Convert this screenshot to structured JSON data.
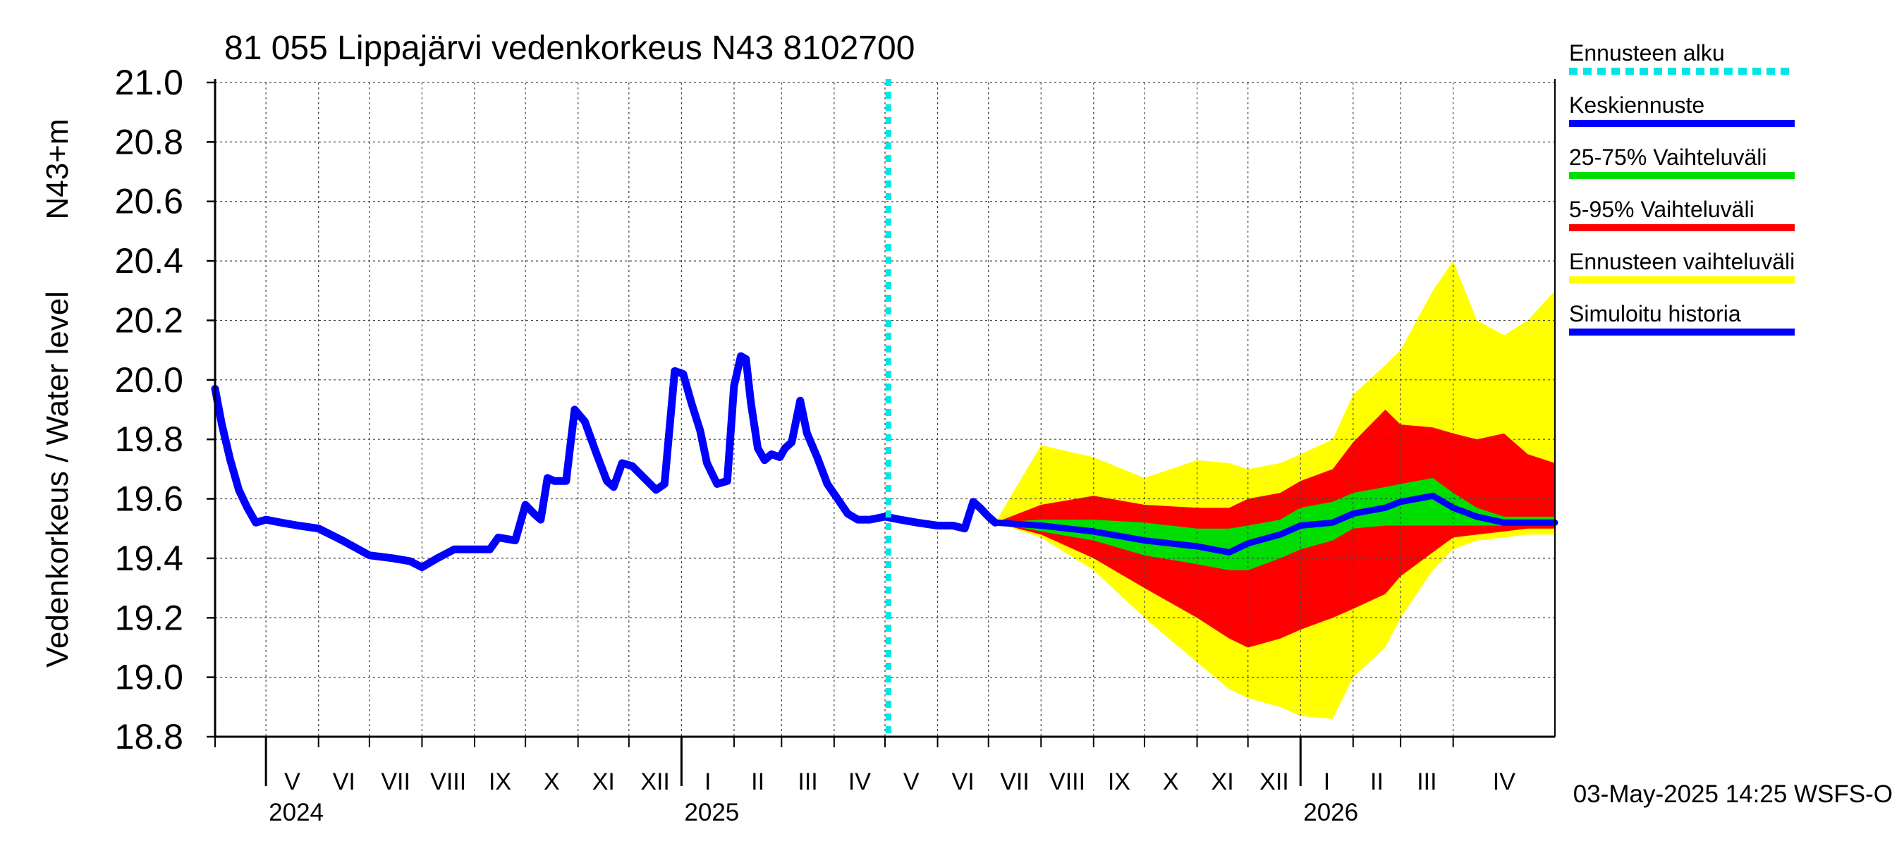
{
  "chart_data": {
    "type": "line",
    "title": "81 055 Lippajärvi vedenkorkeus N43 8102700",
    "ylabel_main": "Vedenkorkeus / Water level",
    "ylabel_unit": "N43+m",
    "ylim": [
      18.8,
      21.0
    ],
    "y_ticks": [
      "21.0",
      "20.8",
      "20.6",
      "20.4",
      "20.2",
      "20.0",
      "19.8",
      "19.6",
      "19.4",
      "19.2",
      "19.0",
      "18.8"
    ],
    "x_range": [
      "2024-04-01",
      "2026-05-31"
    ],
    "forecast_start": "2025-05-03",
    "months": [
      {
        "label": "V",
        "start": "2024-05-01"
      },
      {
        "label": "VI",
        "start": "2024-06-01"
      },
      {
        "label": "VII",
        "start": "2024-07-01"
      },
      {
        "label": "VIII",
        "start": "2024-08-01"
      },
      {
        "label": "IX",
        "start": "2024-09-01"
      },
      {
        "label": "X",
        "start": "2024-10-01"
      },
      {
        "label": "XI",
        "start": "2024-11-01"
      },
      {
        "label": "XII",
        "start": "2024-12-01"
      },
      {
        "label": "I",
        "start": "2025-01-01"
      },
      {
        "label": "II",
        "start": "2025-02-01"
      },
      {
        "label": "III",
        "start": "2025-03-01"
      },
      {
        "label": "IV",
        "start": "2025-04-01"
      },
      {
        "label": "V",
        "start": "2025-05-01"
      },
      {
        "label": "VI",
        "start": "2025-06-01"
      },
      {
        "label": "VII",
        "start": "2025-07-01"
      },
      {
        "label": "VIII",
        "start": "2025-08-01"
      },
      {
        "label": "IX",
        "start": "2025-09-01"
      },
      {
        "label": "X",
        "start": "2025-10-01"
      },
      {
        "label": "XI",
        "start": "2025-11-01"
      },
      {
        "label": "XII",
        "start": "2025-12-01"
      },
      {
        "label": "I",
        "start": "2026-01-01"
      },
      {
        "label": "II",
        "start": "2026-02-01"
      },
      {
        "label": "III",
        "start": "2026-03-01"
      },
      {
        "label": "IV",
        "start": "2026-04-01"
      }
    ],
    "years": [
      {
        "label": "2024",
        "start": "2024-05-01"
      },
      {
        "label": "2025",
        "start": "2025-01-01"
      },
      {
        "label": "2026",
        "start": "2026-01-01"
      }
    ],
    "legend": [
      {
        "key": "alku",
        "label": "Ennusteen alku",
        "color": "#00e5e5",
        "style": "dashed"
      },
      {
        "key": "mean",
        "label": "Keskiennuste",
        "color": "#0000ff",
        "style": "solid"
      },
      {
        "key": "p25",
        "label": "25-75% Vaihteluväli",
        "color": "#00dd00",
        "style": "solid"
      },
      {
        "key": "p5",
        "label": "5-95% Vaihteluväli",
        "color": "#ff0000",
        "style": "solid"
      },
      {
        "key": "range",
        "label": "Ennusteen vaihteluväli",
        "color": "#ffff00",
        "style": "solid"
      },
      {
        "key": "hist",
        "label": "Simuloitu historia",
        "color": "#0000ff",
        "style": "solid"
      }
    ],
    "footer": "03-May-2025 14:25 WSFS-O",
    "history": {
      "name": "Simuloitu historia",
      "points": [
        [
          "2024-04-01",
          19.97
        ],
        [
          "2024-04-05",
          19.85
        ],
        [
          "2024-04-10",
          19.73
        ],
        [
          "2024-04-15",
          19.63
        ],
        [
          "2024-04-20",
          19.57
        ],
        [
          "2024-04-25",
          19.52
        ],
        [
          "2024-05-01",
          19.53
        ],
        [
          "2024-05-10",
          19.52
        ],
        [
          "2024-05-20",
          19.51
        ],
        [
          "2024-06-01",
          19.5
        ],
        [
          "2024-06-15",
          19.46
        ],
        [
          "2024-07-01",
          19.41
        ],
        [
          "2024-07-15",
          19.4
        ],
        [
          "2024-07-25",
          19.39
        ],
        [
          "2024-08-01",
          19.37
        ],
        [
          "2024-08-10",
          19.4
        ],
        [
          "2024-08-20",
          19.43
        ],
        [
          "2024-09-01",
          19.43
        ],
        [
          "2024-09-10",
          19.43
        ],
        [
          "2024-09-15",
          19.47
        ],
        [
          "2024-09-25",
          19.46
        ],
        [
          "2024-10-01",
          19.58
        ],
        [
          "2024-10-06",
          19.55
        ],
        [
          "2024-10-10",
          19.53
        ],
        [
          "2024-10-14",
          19.67
        ],
        [
          "2024-10-18",
          19.66
        ],
        [
          "2024-10-25",
          19.66
        ],
        [
          "2024-10-30",
          19.9
        ],
        [
          "2024-11-05",
          19.86
        ],
        [
          "2024-11-12",
          19.75
        ],
        [
          "2024-11-18",
          19.66
        ],
        [
          "2024-11-22",
          19.64
        ],
        [
          "2024-11-27",
          19.72
        ],
        [
          "2024-12-03",
          19.71
        ],
        [
          "2024-12-10",
          19.67
        ],
        [
          "2024-12-17",
          19.63
        ],
        [
          "2024-12-22",
          19.65
        ],
        [
          "2024-12-28",
          20.03
        ],
        [
          "2025-01-02",
          20.02
        ],
        [
          "2025-01-07",
          19.92
        ],
        [
          "2025-01-12",
          19.83
        ],
        [
          "2025-01-16",
          19.72
        ],
        [
          "2025-01-22",
          19.65
        ],
        [
          "2025-01-28",
          19.66
        ],
        [
          "2025-02-01",
          19.98
        ],
        [
          "2025-02-05",
          20.08
        ],
        [
          "2025-02-08",
          20.07
        ],
        [
          "2025-02-11",
          19.92
        ],
        [
          "2025-02-15",
          19.77
        ],
        [
          "2025-02-19",
          19.73
        ],
        [
          "2025-02-23",
          19.75
        ],
        [
          "2025-02-28",
          19.74
        ],
        [
          "2025-03-03",
          19.77
        ],
        [
          "2025-03-07",
          19.79
        ],
        [
          "2025-03-12",
          19.93
        ],
        [
          "2025-03-16",
          19.82
        ],
        [
          "2025-03-22",
          19.74
        ],
        [
          "2025-03-28",
          19.65
        ],
        [
          "2025-04-03",
          19.6
        ],
        [
          "2025-04-09",
          19.55
        ],
        [
          "2025-04-15",
          19.53
        ],
        [
          "2025-04-22",
          19.53
        ],
        [
          "2025-05-01",
          19.54
        ],
        [
          "2025-05-10",
          19.53
        ],
        [
          "2025-05-20",
          19.52
        ],
        [
          "2025-06-01",
          19.51
        ],
        [
          "2025-06-10",
          19.51
        ],
        [
          "2025-06-17",
          19.5
        ],
        [
          "2025-06-22",
          19.59
        ],
        [
          "2025-06-26",
          19.57
        ],
        [
          "2025-07-01",
          19.54
        ],
        [
          "2025-07-05",
          19.52
        ]
      ]
    },
    "forecast": {
      "x": [
        "2025-07-05",
        "2025-08-01",
        "2025-09-01",
        "2025-10-01",
        "2025-11-01",
        "2025-11-20",
        "2025-12-01",
        "2025-12-20",
        "2026-01-01",
        "2026-01-20",
        "2026-02-01",
        "2026-02-20",
        "2026-03-01",
        "2026-03-20",
        "2026-04-01",
        "2026-04-15",
        "2026-05-01",
        "2026-05-15",
        "2026-05-31"
      ],
      "mean": [
        19.52,
        19.51,
        19.49,
        19.46,
        19.44,
        19.42,
        19.45,
        19.48,
        19.51,
        19.52,
        19.55,
        19.57,
        19.59,
        19.61,
        19.57,
        19.54,
        19.52,
        19.52,
        19.52
      ],
      "p25_low": [
        19.52,
        19.49,
        19.46,
        19.41,
        19.38,
        19.36,
        19.36,
        19.4,
        19.43,
        19.46,
        19.5,
        19.51,
        19.51,
        19.51,
        19.51,
        19.51,
        19.51,
        19.51,
        19.51
      ],
      "p25_high": [
        19.52,
        19.53,
        19.53,
        19.52,
        19.5,
        19.5,
        19.51,
        19.53,
        19.57,
        19.59,
        19.62,
        19.64,
        19.65,
        19.67,
        19.62,
        19.57,
        19.54,
        19.54,
        19.54
      ],
      "p5_low": [
        19.52,
        19.48,
        19.4,
        19.3,
        19.2,
        19.13,
        19.1,
        19.13,
        19.16,
        19.2,
        19.23,
        19.28,
        19.34,
        19.42,
        19.47,
        19.48,
        19.49,
        19.5,
        19.5
      ],
      "p5_high": [
        19.52,
        19.58,
        19.61,
        19.58,
        19.57,
        19.57,
        19.6,
        19.62,
        19.66,
        19.7,
        19.79,
        19.9,
        19.85,
        19.84,
        19.82,
        19.8,
        19.82,
        19.75,
        19.72
      ],
      "min": [
        19.52,
        19.47,
        19.36,
        19.2,
        19.05,
        18.96,
        18.93,
        18.9,
        18.87,
        18.86,
        19.0,
        19.1,
        19.2,
        19.36,
        19.43,
        19.46,
        19.47,
        19.48,
        19.48
      ],
      "max": [
        19.52,
        19.78,
        19.74,
        19.67,
        19.73,
        19.72,
        19.7,
        19.72,
        19.75,
        19.8,
        19.95,
        20.05,
        20.1,
        20.3,
        20.4,
        20.2,
        20.15,
        20.2,
        20.3
      ]
    }
  }
}
